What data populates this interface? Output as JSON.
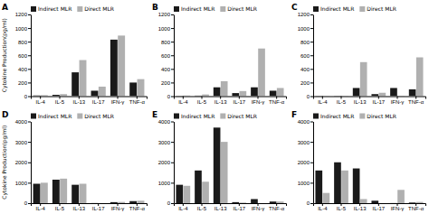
{
  "chart_data": [
    {
      "type": "bar",
      "title": "A",
      "ylabel": "Cytokine Production(pg/ml)",
      "categories": [
        "IL-4",
        "IL-5",
        "IL-13",
        "IL-17",
        "IFN-γ",
        "TNF-α"
      ],
      "series": [
        {
          "name": "Indirect MLR",
          "color": "#1a1a1a",
          "values": [
            10,
            20,
            350,
            80,
            830,
            200
          ]
        },
        {
          "name": "Direct MLR",
          "color": "#b0b0b0",
          "values": [
            15,
            30,
            530,
            140,
            890,
            250
          ]
        }
      ],
      "ylim": [
        0,
        1200
      ],
      "yticks": [
        0,
        200,
        400,
        600,
        800,
        1000,
        1200
      ],
      "legend": "upper left",
      "grid": false
    },
    {
      "type": "bar",
      "title": "B",
      "categories": [
        "IL-4",
        "IL-5",
        "IL-13",
        "IL-17",
        "IFN-γ",
        "TNF-α"
      ],
      "series": [
        {
          "name": "Indirect MLR",
          "color": "#1a1a1a",
          "values": [
            5,
            8,
            130,
            45,
            130,
            80
          ]
        },
        {
          "name": "Direct MLR",
          "color": "#b0b0b0",
          "values": [
            10,
            25,
            220,
            75,
            700,
            120
          ]
        }
      ],
      "ylim": [
        0,
        1200
      ],
      "yticks": [
        0,
        200,
        400,
        600,
        800,
        1000,
        1200
      ],
      "legend": "upper left",
      "grid": false
    },
    {
      "type": "bar",
      "title": "C",
      "categories": [
        "IL-4",
        "IL-5",
        "IL-13",
        "IL-17",
        "IFN-γ",
        "TNF-α"
      ],
      "series": [
        {
          "name": "Indirect MLR",
          "color": "#1a1a1a",
          "values": [
            5,
            5,
            120,
            30,
            120,
            100
          ]
        },
        {
          "name": "Direct MLR",
          "color": "#b0b0b0",
          "values": [
            5,
            5,
            500,
            50,
            5,
            570
          ]
        }
      ],
      "ylim": [
        0,
        1200
      ],
      "yticks": [
        0,
        200,
        400,
        600,
        800,
        1000,
        1200
      ],
      "legend": "upper left",
      "grid": false
    },
    {
      "type": "bar",
      "title": "D",
      "ylabel": "Cytokine Production(pg/ml)",
      "categories": [
        "IL-4",
        "IL-5",
        "IL-13",
        "IL-17",
        "IFN-γ",
        "TNF-α"
      ],
      "series": [
        {
          "name": "Indirect MLR",
          "color": "#1a1a1a",
          "values": [
            950,
            1150,
            900,
            5,
            50,
            100
          ]
        },
        {
          "name": "Direct MLR",
          "color": "#b0b0b0",
          "values": [
            1000,
            1200,
            950,
            5,
            60,
            120
          ]
        }
      ],
      "ylim": [
        0,
        4000
      ],
      "yticks": [
        0,
        1000,
        2000,
        3000,
        4000
      ],
      "legend": "upper left",
      "grid": false
    },
    {
      "type": "bar",
      "title": "E",
      "categories": [
        "IL-4",
        "IL-5",
        "IL-13",
        "IL-17",
        "IFN-γ",
        "TNF-α"
      ],
      "series": [
        {
          "name": "Indirect MLR",
          "color": "#1a1a1a",
          "values": [
            900,
            1600,
            3700,
            50,
            200,
            80
          ]
        },
        {
          "name": "Direct MLR",
          "color": "#b0b0b0",
          "values": [
            850,
            1050,
            3000,
            30,
            5,
            80
          ]
        }
      ],
      "ylim": [
        0,
        4000
      ],
      "yticks": [
        0,
        1000,
        2000,
        3000,
        4000
      ],
      "legend": "upper left",
      "grid": false
    },
    {
      "type": "bar",
      "title": "F",
      "categories": [
        "IL-4",
        "IL-5",
        "IL-13",
        "IL-17",
        "IFN-γ",
        "TNF-α"
      ],
      "series": [
        {
          "name": "Indirect MLR",
          "color": "#1a1a1a",
          "values": [
            1600,
            2000,
            1700,
            120,
            5,
            30
          ]
        },
        {
          "name": "Direct MLR",
          "color": "#b0b0b0",
          "values": [
            500,
            1600,
            200,
            5,
            650,
            60
          ]
        }
      ],
      "ylim": [
        0,
        4000
      ],
      "yticks": [
        0,
        1000,
        2000,
        3000,
        4000
      ],
      "legend": "upper left",
      "grid": false
    }
  ]
}
